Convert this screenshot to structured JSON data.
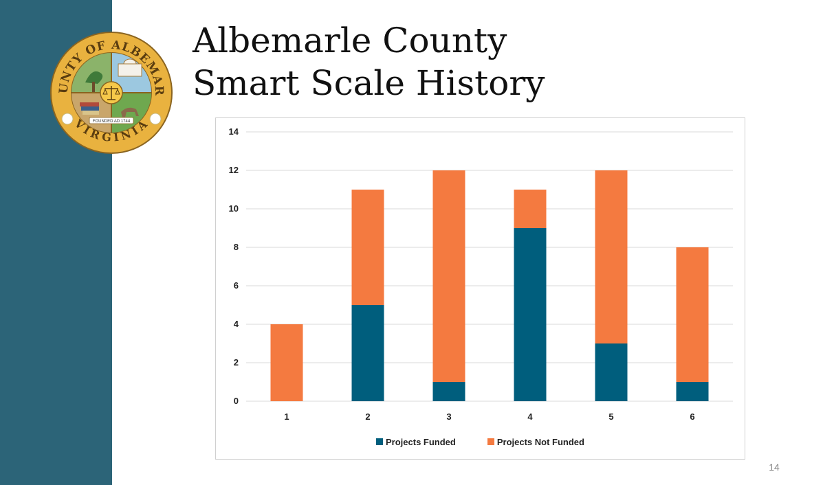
{
  "slide": {
    "title_line1": "Albemarle County",
    "title_line2": "Smart Scale History",
    "page_number": "14"
  },
  "seal": {
    "top_text": "COUNTY OF ALBEMARLE",
    "bottom_text": "VIRGINIA",
    "small_text": "FOUNDED AD 1744"
  },
  "colors": {
    "sidebar": "#2c6478",
    "funded": "#005e7d",
    "not_funded": "#f47a40",
    "gridline": "#d9d9d9"
  },
  "chart_data": {
    "type": "bar",
    "stacked": true,
    "categories": [
      "1",
      "2",
      "3",
      "4",
      "5",
      "6"
    ],
    "series": [
      {
        "name": "Projects Funded",
        "values": [
          0,
          5,
          1,
          9,
          3,
          1
        ]
      },
      {
        "name": "Projects Not Funded",
        "values": [
          4,
          6,
          11,
          2,
          9,
          7
        ]
      }
    ],
    "y_ticks": [
      "0",
      "2",
      "4",
      "6",
      "8",
      "10",
      "12",
      "14"
    ],
    "ylim": [
      0,
      14
    ],
    "grid": true,
    "legend_position": "bottom"
  }
}
